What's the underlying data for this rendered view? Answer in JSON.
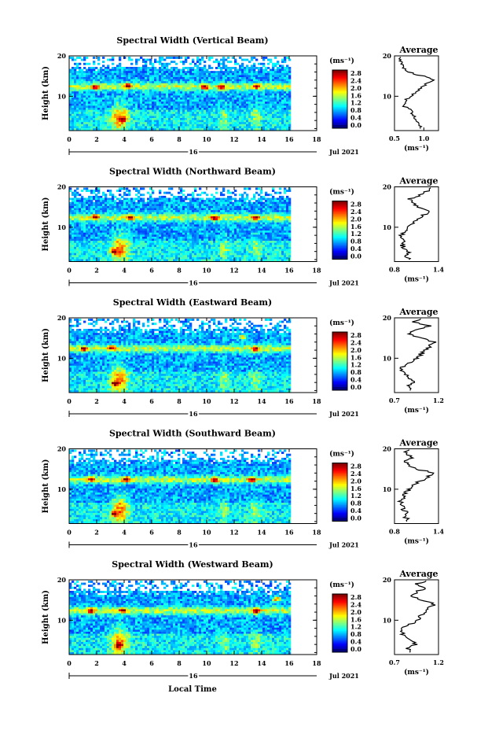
{
  "figure": {
    "xlabel": "Local Time"
  },
  "chart_data": [
    {
      "type": "heatmap",
      "title": "Spectral Width (Vertical Beam)",
      "ylabel": "Height (km)",
      "xticks": [
        "0",
        "2",
        "4",
        "6",
        "8",
        "10",
        "12",
        "14",
        "16",
        "18"
      ],
      "xlim": [
        0,
        18
      ],
      "ylim": [
        1.5,
        20
      ],
      "yticks": [
        "20",
        "10"
      ],
      "date_label": "16",
      "month_year": "Jul 2021",
      "colorbar": {
        "unit": "(ms⁻¹)",
        "ticks": [
          "2.8",
          "2.4",
          "2.0",
          "1.6",
          "1.2",
          "0.8",
          "0.4",
          "0.0"
        ]
      },
      "profile": {
        "title": "Average",
        "xlim": [
          0.5,
          1.25
        ],
        "xticks": [
          "0.5",
          "1.0"
        ],
        "yticks": [
          "20",
          "10"
        ],
        "xlabel": "(ms⁻¹)",
        "heights": [
          2,
          3,
          4,
          5,
          6,
          7,
          8,
          9,
          10,
          11,
          12,
          13,
          14,
          15,
          16,
          17,
          18,
          19,
          20
        ],
        "values": [
          0.95,
          0.88,
          0.9,
          0.85,
          0.8,
          0.72,
          0.65,
          0.7,
          0.78,
          0.85,
          0.95,
          1.05,
          1.15,
          0.98,
          0.75,
          0.65,
          0.6,
          0.58,
          0.6
        ]
      },
      "hotspots": [
        [
          3.8,
          4.5
        ],
        [
          4.2,
          12.8
        ],
        [
          1.8,
          12.5
        ],
        [
          13.5,
          12.7
        ],
        [
          11,
          12.5
        ],
        [
          9.8,
          12.5
        ]
      ]
    },
    {
      "type": "heatmap",
      "title": "Spectral Width (Northward Beam)",
      "ylabel": "Height (km)",
      "xticks": [
        "0",
        "2",
        "4",
        "6",
        "8",
        "10",
        "12",
        "14",
        "16",
        "18"
      ],
      "xlim": [
        0,
        18
      ],
      "ylim": [
        1.5,
        20
      ],
      "yticks": [
        "20",
        "10"
      ],
      "date_label": "16",
      "month_year": "Jul 2021",
      "colorbar": {
        "unit": "(ms⁻¹)",
        "ticks": [
          "2.8",
          "2.4",
          "2.0",
          "1.6",
          "1.2",
          "0.8",
          "0.4",
          "0.0"
        ]
      },
      "profile": {
        "title": "Average",
        "xlim": [
          0.8,
          1.4
        ],
        "xticks": [
          "0.8",
          "1.4"
        ],
        "yticks": [
          "20",
          "10"
        ],
        "xlabel": "(ms⁻¹)",
        "heights": [
          2,
          3,
          4,
          5,
          6,
          7,
          8,
          9,
          10,
          11,
          12,
          13,
          14,
          15,
          16,
          17,
          18,
          19,
          20
        ],
        "values": [
          1.0,
          0.95,
          1.0,
          0.92,
          0.9,
          0.95,
          0.88,
          0.95,
          1.0,
          1.05,
          1.1,
          1.2,
          1.3,
          1.1,
          1.05,
          1.0,
          1.15,
          1.25,
          1.3
        ]
      },
      "hotspots": [
        [
          3.2,
          4.2
        ],
        [
          4.3,
          12.6
        ],
        [
          1.8,
          12.7
        ],
        [
          10.5,
          12.6
        ],
        [
          13.5,
          12.6
        ]
      ]
    },
    {
      "type": "heatmap",
      "title": "Spectral Width (Eastward Beam)",
      "ylabel": "Height (km)",
      "xticks": [
        "0",
        "2",
        "4",
        "6",
        "8",
        "10",
        "12",
        "14",
        "16",
        "18"
      ],
      "xlim": [
        0,
        18
      ],
      "ylim": [
        1.5,
        20
      ],
      "yticks": [
        "20",
        "10"
      ],
      "date_label": "16",
      "month_year": "Jul 2021",
      "colorbar": {
        "unit": "(ms⁻¹)",
        "ticks": [
          "2.8",
          "2.4",
          "2.0",
          "1.6",
          "1.2",
          "0.8",
          "0.4",
          "0.0"
        ]
      },
      "profile": {
        "title": "Average",
        "xlim": [
          0.7,
          1.2
        ],
        "xticks": [
          "0.7",
          "1.2"
        ],
        "yticks": [
          "20",
          "10"
        ],
        "xlabel": "(ms⁻¹)",
        "heights": [
          2,
          3,
          4,
          5,
          6,
          7,
          8,
          9,
          10,
          11,
          12,
          13,
          14,
          15,
          16,
          17,
          18,
          19,
          20
        ],
        "values": [
          0.9,
          0.85,
          0.92,
          0.88,
          0.82,
          0.78,
          0.8,
          0.9,
          0.95,
          1.0,
          1.05,
          1.1,
          1.15,
          1.0,
          0.85,
          0.95,
          1.1,
          0.9,
          1.05
        ]
      },
      "hotspots": [
        [
          3.2,
          4.0
        ],
        [
          3.0,
          12.8
        ],
        [
          1.0,
          12.5
        ],
        [
          13.5,
          12.5
        ],
        [
          12.5,
          15.5
        ]
      ]
    },
    {
      "type": "heatmap",
      "title": "Spectral Width (Southward Beam)",
      "ylabel": "Height (km)",
      "xticks": [
        "0",
        "2",
        "4",
        "6",
        "8",
        "10",
        "12",
        "14",
        "16",
        "18"
      ],
      "xlim": [
        0,
        18
      ],
      "ylim": [
        1.5,
        20
      ],
      "yticks": [
        "20",
        "10"
      ],
      "date_label": "16",
      "month_year": "Jul 2021",
      "colorbar": {
        "unit": "(ms⁻¹)",
        "ticks": [
          "2.8",
          "2.4",
          "2.0",
          "1.6",
          "1.2",
          "0.8",
          "0.4",
          "0.0"
        ]
      },
      "profile": {
        "title": "Average",
        "xlim": [
          0.8,
          1.4
        ],
        "xticks": [
          "0.8",
          "1.4"
        ],
        "yticks": [
          "20",
          "10"
        ],
        "xlabel": "(ms⁻¹)",
        "heights": [
          2,
          3,
          4,
          5,
          6,
          7,
          8,
          9,
          10,
          11,
          12,
          13,
          14,
          15,
          16,
          17,
          18,
          19,
          20
        ],
        "values": [
          1.0,
          0.95,
          0.98,
          0.92,
          0.9,
          0.88,
          0.92,
          0.95,
          1.0,
          1.05,
          1.15,
          1.25,
          1.35,
          1.1,
          1.0,
          0.95,
          1.05,
          0.95,
          1.0
        ]
      },
      "hotspots": [
        [
          3.2,
          4.2
        ],
        [
          4.0,
          12.7
        ],
        [
          1.5,
          12.8
        ],
        [
          10.5,
          12.6
        ],
        [
          13.2,
          12.6
        ]
      ]
    },
    {
      "type": "heatmap",
      "title": "Spectral Width (Westward Beam)",
      "ylabel": "Height (km)",
      "xticks": [
        "0",
        "2",
        "4",
        "6",
        "8",
        "10",
        "12",
        "14",
        "16",
        "18"
      ],
      "xlim": [
        0,
        18
      ],
      "ylim": [
        1.5,
        20
      ],
      "yticks": [
        "20",
        "10"
      ],
      "date_label": "16",
      "month_year": "Jul 2021",
      "colorbar": {
        "unit": "(ms⁻¹)",
        "ticks": [
          "2.8",
          "2.4",
          "2.0",
          "1.6",
          "1.2",
          "0.8",
          "0.4",
          "0.0"
        ]
      },
      "profile": {
        "title": "Average",
        "xlim": [
          0.7,
          1.2
        ],
        "xticks": [
          "0.7",
          "1.2"
        ],
        "yticks": [
          "20",
          "10"
        ],
        "xlabel": "(ms⁻¹)",
        "heights": [
          2,
          3,
          4,
          5,
          6,
          7,
          8,
          9,
          10,
          11,
          12,
          13,
          14,
          15,
          16,
          17,
          18,
          19,
          20
        ],
        "values": [
          0.9,
          0.85,
          0.95,
          0.88,
          0.82,
          0.78,
          0.8,
          0.88,
          0.95,
          1.0,
          1.05,
          1.1,
          1.15,
          1.0,
          0.9,
          0.95,
          1.05,
          0.95,
          1.1
        ]
      },
      "hotspots": [
        [
          3.5,
          4.0
        ],
        [
          3.8,
          12.7
        ],
        [
          1.5,
          12.6
        ],
        [
          13.5,
          12.5
        ],
        [
          15.0,
          15.5
        ]
      ]
    }
  ]
}
